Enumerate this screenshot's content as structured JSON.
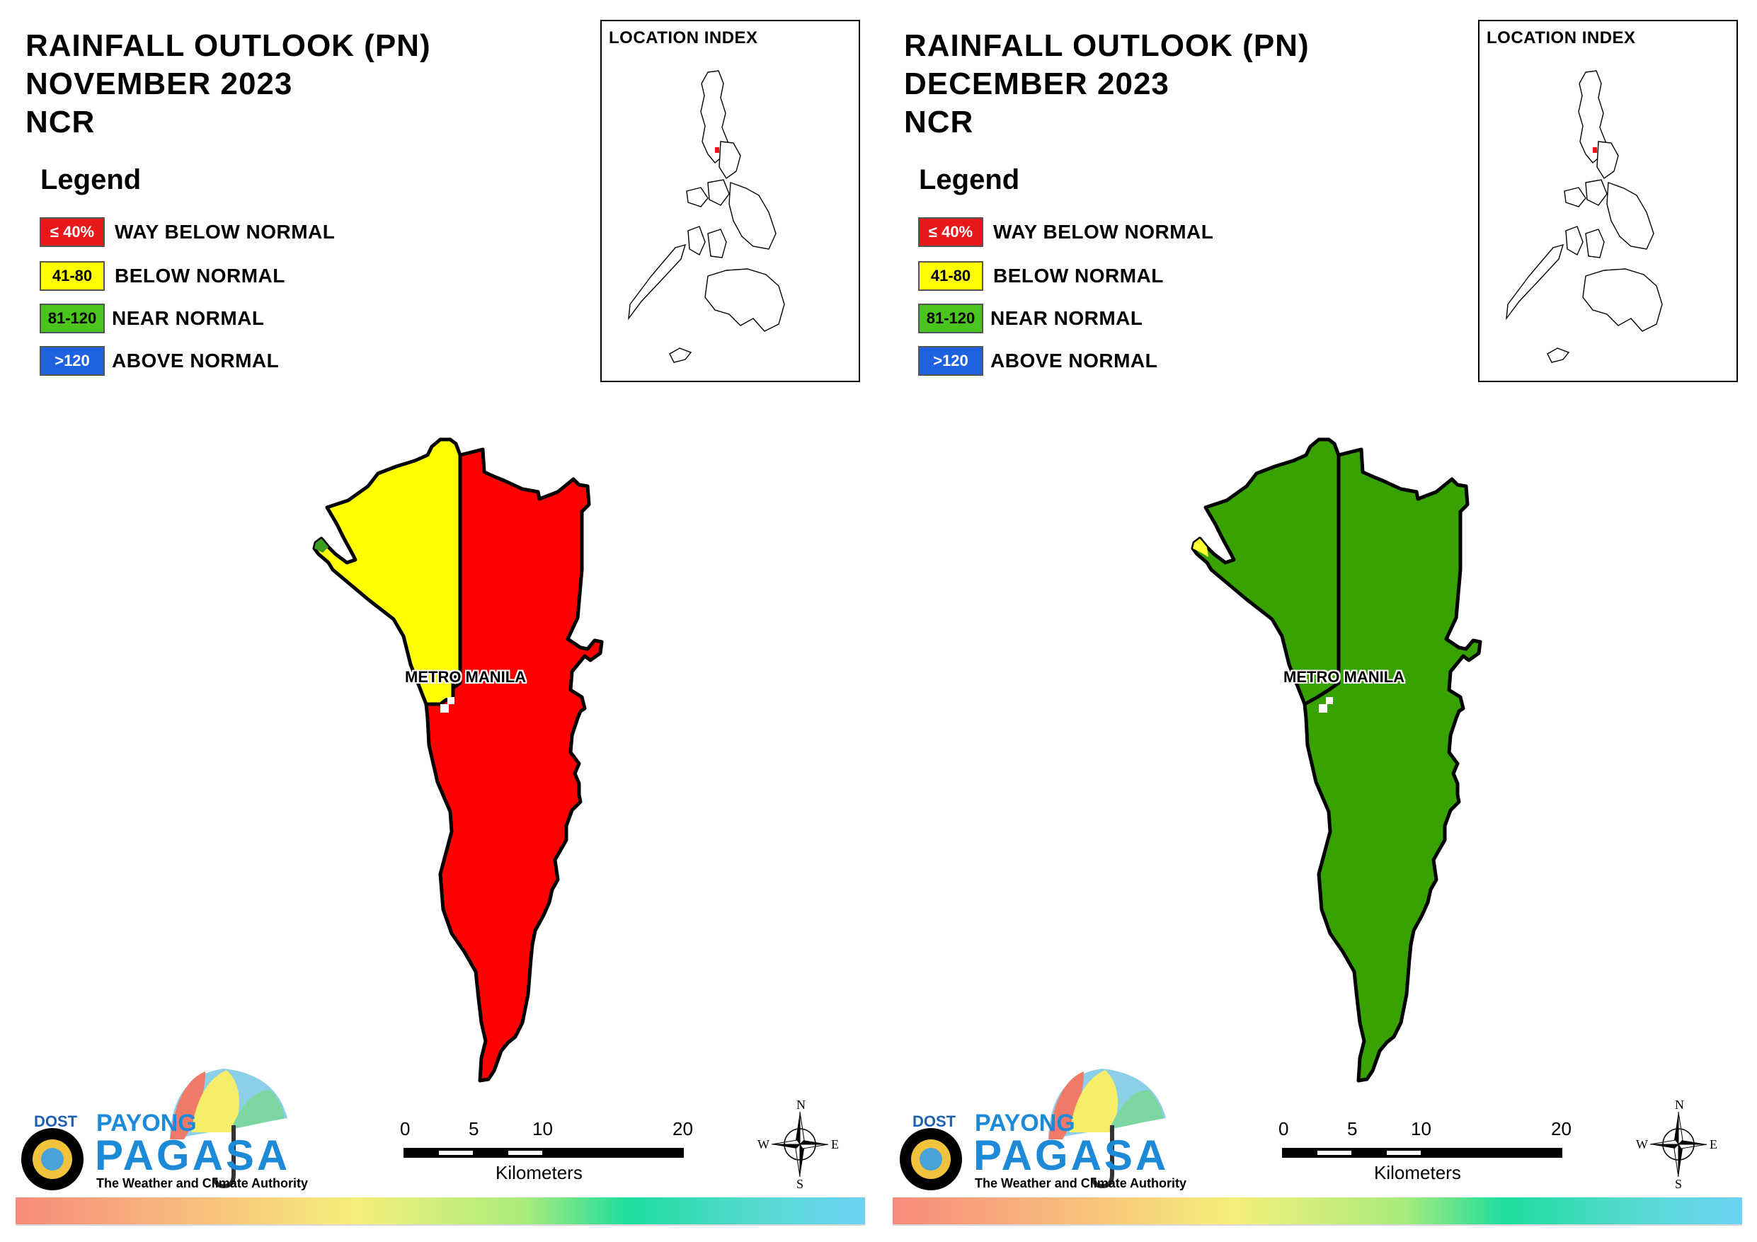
{
  "panels": [
    {
      "title_line1": "RAINFALL OUTLOOK (PN)",
      "title_line2": "NOVEMBER 2023",
      "title_line3": "NCR",
      "legend_title": "Legend",
      "legend": [
        {
          "swatch": "≤ 40%",
          "label": "WAY BELOW NORMAL",
          "color": "#e8171a",
          "text_color": "#ffffff"
        },
        {
          "swatch": "41-80",
          "label": "BELOW NORMAL",
          "color": "#ffff00",
          "text_color": "#000000"
        },
        {
          "swatch": "81-120",
          "label": "NEAR NORMAL",
          "color": "#4cc41f",
          "text_color": "#000000"
        },
        {
          "swatch": ">120",
          "label": "ABOVE NORMAL",
          "color": "#1f62e0",
          "text_color": "#ffffff"
        }
      ],
      "location_index_title": "LOCATION INDEX",
      "map_label": "METRO MANILA",
      "map_main_color": "#ff0000",
      "map_northwest_color": "#ffff00",
      "map_tip_color": "#3a9d1f",
      "scale_labels": [
        "0",
        "5",
        "10",
        "20"
      ],
      "scale_unit": "Kilometers",
      "compass": {
        "n": "N",
        "s": "S",
        "e": "E",
        "w": "W"
      },
      "logo": {
        "dost": "DOST",
        "payong": "PAYONG",
        "pagasa": "PAGASA",
        "tagline": "The Weather and Climate Authority"
      }
    },
    {
      "title_line1": "RAINFALL OUTLOOK (PN)",
      "title_line2": "DECEMBER 2023",
      "title_line3": "NCR",
      "legend_title": "Legend",
      "legend": [
        {
          "swatch": "≤ 40%",
          "label": "WAY BELOW NORMAL",
          "color": "#e8171a",
          "text_color": "#ffffff"
        },
        {
          "swatch": "41-80",
          "label": "BELOW NORMAL",
          "color": "#ffff00",
          "text_color": "#000000"
        },
        {
          "swatch": "81-120",
          "label": "NEAR NORMAL",
          "color": "#4cc41f",
          "text_color": "#000000"
        },
        {
          "swatch": ">120",
          "label": "ABOVE NORMAL",
          "color": "#1f62e0",
          "text_color": "#ffffff"
        }
      ],
      "location_index_title": "LOCATION INDEX",
      "map_label": "METRO MANILA",
      "map_main_color": "#38a300",
      "map_northwest_color": "#38a300",
      "map_tip_color": "#ffff33",
      "scale_labels": [
        "0",
        "5",
        "10",
        "20"
      ],
      "scale_unit": "Kilometers",
      "compass": {
        "n": "N",
        "s": "S",
        "e": "E",
        "w": "W"
      },
      "logo": {
        "dost": "DOST",
        "payong": "PAYONG",
        "pagasa": "PAGASA",
        "tagline": "The Weather and Climate Authority"
      }
    }
  ]
}
